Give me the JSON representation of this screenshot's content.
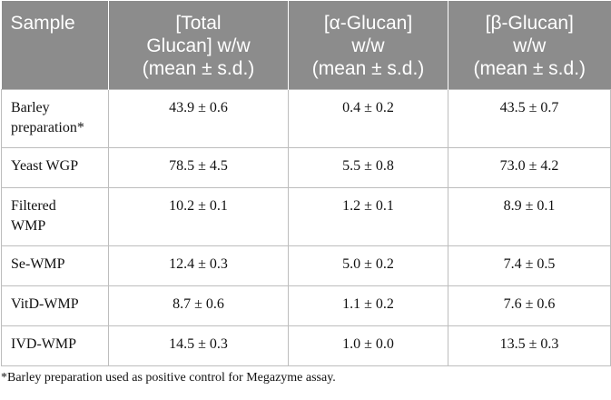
{
  "table": {
    "headers": [
      [
        "Sample"
      ],
      [
        "[Total",
        "Glucan] w/w",
        "(mean ± s.d.)"
      ],
      [
        "[α-Glucan]",
        "w/w",
        "(mean ± s.d.)"
      ],
      [
        "[β-Glucan]",
        "w/w",
        "(mean ± s.d.)"
      ]
    ],
    "rows": [
      {
        "sample": [
          "Barley",
          "preparation*"
        ],
        "total": "43.9 ± 0.6",
        "alpha": "0.4 ± 0.2",
        "beta": "43.5 ± 0.7"
      },
      {
        "sample": [
          "Yeast WGP"
        ],
        "total": "78.5 ± 4.5",
        "alpha": "5.5 ± 0.8",
        "beta": "73.0 ± 4.2"
      },
      {
        "sample": [
          "Filtered",
          "WMP"
        ],
        "total": "10.2 ± 0.1",
        "alpha": "1.2 ± 0.1",
        "beta": "8.9 ± 0.1"
      },
      {
        "sample": [
          "Se-WMP"
        ],
        "total": "12.4 ± 0.3",
        "alpha": "5.0 ± 0.2",
        "beta": "7.4 ± 0.5"
      },
      {
        "sample": [
          "VitD-WMP"
        ],
        "total": "8.7 ± 0.6",
        "alpha": "1.1 ± 0.2",
        "beta": "7.6 ± 0.6"
      },
      {
        "sample": [
          "IVD-WMP"
        ],
        "total": "14.5 ± 0.3",
        "alpha": "1.0 ± 0.0",
        "beta": "13.5 ± 0.3"
      }
    ]
  },
  "footnote": "*Barley preparation used as positive control for Megazyme assay.",
  "colors": {
    "header_bg": "#8c8c8c",
    "header_text": "#ffffff",
    "border": "#bdbdbd"
  }
}
